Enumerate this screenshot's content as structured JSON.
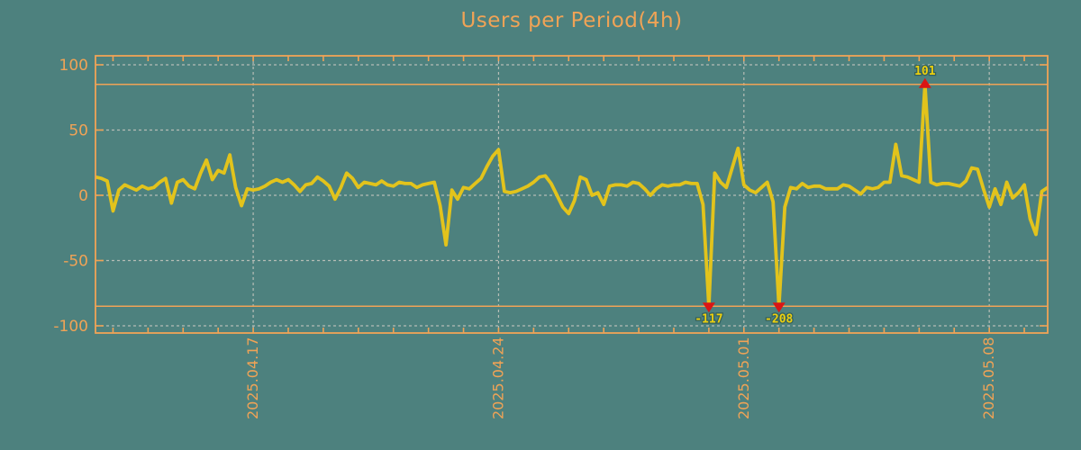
{
  "chart_data": {
    "type": "line",
    "title": "Users per Period(4h)",
    "x_start": "2025-04-12T12:00",
    "x_step_hours": 4,
    "x_tick_labels": [
      "2025.04.17",
      "2025.04.24",
      "2025.05.01",
      "2025.05.08"
    ],
    "x_tick_indices": [
      27,
      69,
      111,
      153
    ],
    "x_day_tick_start_index": 3,
    "x_day_tick_step": 6,
    "y_ticks": [
      100,
      50,
      0,
      -50,
      -100
    ],
    "ylim": [
      -100,
      100
    ],
    "clip_limit": 85,
    "grid": true,
    "values": [
      14,
      13,
      11,
      -12,
      4,
      8,
      6,
      4,
      7,
      5,
      6,
      10,
      13,
      -6,
      10,
      12,
      7,
      5,
      17,
      27,
      12,
      19,
      17,
      31,
      6,
      -8,
      5,
      4,
      5,
      7,
      10,
      12,
      10,
      12,
      8,
      3,
      8,
      9,
      14,
      11,
      7,
      -3,
      6,
      17,
      13,
      6,
      10,
      9,
      8,
      11,
      8,
      7,
      10,
      9,
      9,
      6,
      8,
      9,
      10,
      -8,
      -38,
      4,
      -3,
      6,
      5,
      9,
      13,
      22,
      30,
      35,
      3,
      2,
      3,
      5,
      7,
      10,
      14,
      15,
      9,
      0,
      -9,
      -14,
      -4,
      14,
      12,
      0,
      2,
      -7,
      7,
      8,
      8,
      7,
      10,
      9,
      5,
      0,
      5,
      8,
      7,
      8,
      8,
      10,
      9,
      9,
      -7,
      -117,
      17,
      10,
      6,
      21,
      36,
      8,
      4,
      2,
      6,
      10,
      -5,
      -208,
      -9,
      6,
      5,
      9,
      6,
      7,
      7,
      5,
      5,
      5,
      8,
      7,
      4,
      1,
      6,
      5,
      6,
      10,
      10,
      39,
      15,
      14,
      12,
      10,
      101,
      10,
      8,
      9,
      9,
      8,
      7,
      11,
      21,
      20,
      5,
      -9,
      5,
      -7,
      10,
      -2,
      2,
      8,
      -18,
      -30,
      3,
      6
    ],
    "annotations": [
      {
        "index": 105,
        "label": "-117",
        "value": -117,
        "direction": "down"
      },
      {
        "index": 117,
        "label": "-208",
        "value": -208,
        "direction": "down"
      },
      {
        "index": 142,
        "label": "101",
        "value": 101,
        "direction": "up"
      }
    ],
    "colors": {
      "background": "#4d817e",
      "axis": "#f0a356",
      "line": "#e2c31c",
      "grid": "#b6bdb6",
      "marker": "#da1515",
      "annotation_text": "#ecd00e",
      "annotation_outline": "#33605e"
    }
  }
}
